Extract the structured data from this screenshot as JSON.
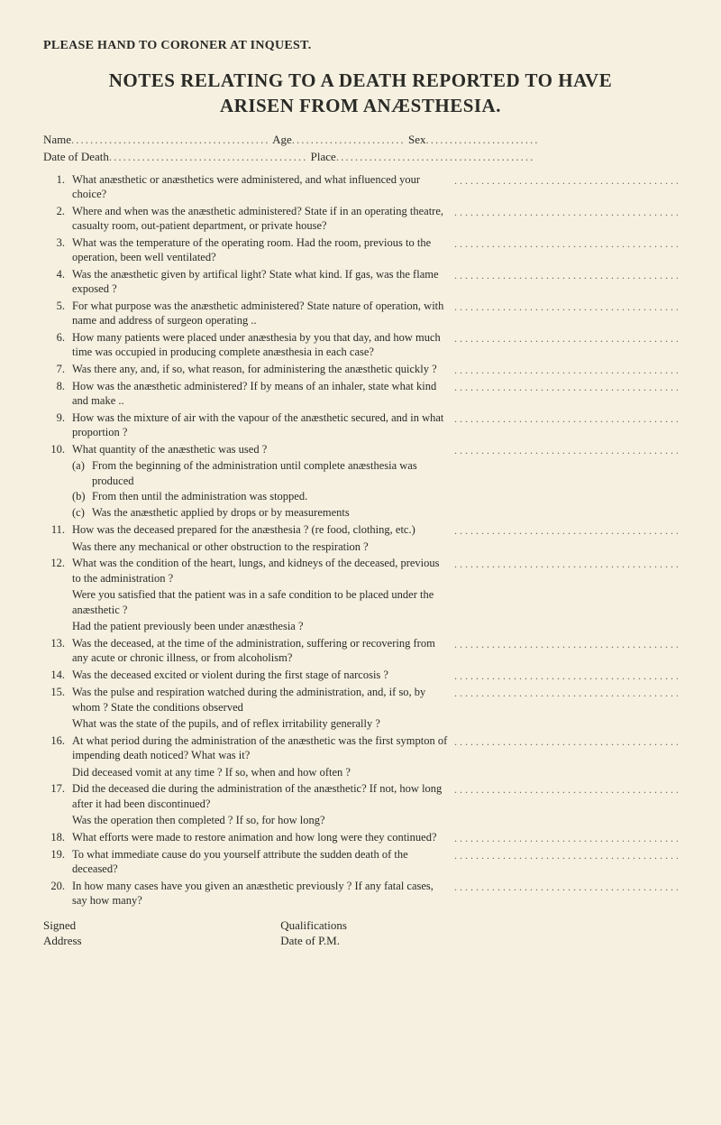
{
  "top_instruction": "PLEASE HAND TO CORONER AT INQUEST.",
  "title_line1": "NOTES RELATING TO A DEATH REPORTED TO HAVE",
  "title_line2": "ARISEN FROM ANÆSTHESIA.",
  "fields": {
    "name_label": "Name",
    "age_label": "Age",
    "sex_label": "Sex",
    "date_of_death_label": "Date of Death",
    "place_label": "Place"
  },
  "questions": [
    {
      "n": "1.",
      "text": "What anæsthetic or anæsthetics were administered, and what influenced your choice?"
    },
    {
      "n": "2.",
      "text": "Where and when was the anæsthetic administered? State if in an operating theatre, casualty room, out-patient department, or private house?"
    },
    {
      "n": "3.",
      "text": "What was the temperature of the operating room. Had the room, previous to the operation, been well ventilated?"
    },
    {
      "n": "4.",
      "text": "Was the anæsthetic given by artifical light? State what kind. If gas, was the flame exposed ?"
    },
    {
      "n": "5.",
      "text": "For what purpose was the anæsthetic administered? State nature of operation, with name and address of surgeon operating .."
    },
    {
      "n": "6.",
      "text": "How many patients were placed under anæsthesia by you that day, and how much time was occupied in producing complete anæsthesia in each case?"
    },
    {
      "n": "7.",
      "text": "Was there any, and, if so, what reason, for administering the anæsthetic quickly ?"
    },
    {
      "n": "8.",
      "text": "How was the anæsthetic administered? If by means of an inhaler, state what kind and make .."
    },
    {
      "n": "9.",
      "text": "How was the mixture of air with the vapour of the anæsthetic secured, and in what proportion ?"
    },
    {
      "n": "10.",
      "text": "What quantity of the anæsthetic was used ?",
      "subs": [
        {
          "label": "(a)",
          "text": "From the beginning of the administration until complete anæsthesia was produced"
        },
        {
          "label": "(b)",
          "text": "From then until the administration was stopped."
        },
        {
          "label": "(c)",
          "text": "Was the anæsthetic applied by drops or by measurements"
        }
      ]
    },
    {
      "n": "11.",
      "text": "How was the deceased prepared for the anæsthesia ? (re food, clothing, etc.)",
      "extras": [
        "Was there any mechanical or other obstruction to the respiration ?"
      ]
    },
    {
      "n": "12.",
      "text": "What was the condition of the heart, lungs, and kidneys of the deceased, previous to the administration ?",
      "extras": [
        "Were you satisfied that the patient was in a safe condition to be placed under the anæsthetic ?",
        "Had the patient previously been under anæsthesia ?"
      ]
    },
    {
      "n": "13.",
      "text": "Was the deceased, at the time of the administration, suffering or recovering from any acute or chronic illness, or from alcoholism?"
    },
    {
      "n": "14.",
      "text": "Was the deceased excited or violent during the first stage of narcosis ?"
    },
    {
      "n": "15.",
      "text": "Was the pulse and respiration watched during the administration, and, if so, by whom ? State the conditions observed",
      "extras": [
        "What was the state of the pupils, and of reflex irritability generally ?"
      ]
    },
    {
      "n": "16.",
      "text": "At what period during the administration of the anæsthetic was the first sympton of impending death noticed? What was it?",
      "extras": [
        "Did deceased vomit at any time ? If so, when and how often ?"
      ]
    },
    {
      "n": "17.",
      "text": "Did the deceased die during the administration of the anæsthetic? If not, how long after it had been discontinued?",
      "extras": [
        "Was the operation then completed ? If so, for how long?"
      ]
    },
    {
      "n": "18.",
      "text": "What efforts were made to restore animation and how long were they continued?"
    },
    {
      "n": "19.",
      "text": "To what immediate cause do you yourself attribute the sudden death of the deceased?"
    },
    {
      "n": "20.",
      "text": "In how many cases have you given an anæsthetic previously ? If any fatal cases, say how many?"
    }
  ],
  "signature": {
    "signed_label": "Signed",
    "qualifications_label": "Qualifications",
    "address_label": "Address",
    "date_pm_label": "Date of P.M."
  }
}
